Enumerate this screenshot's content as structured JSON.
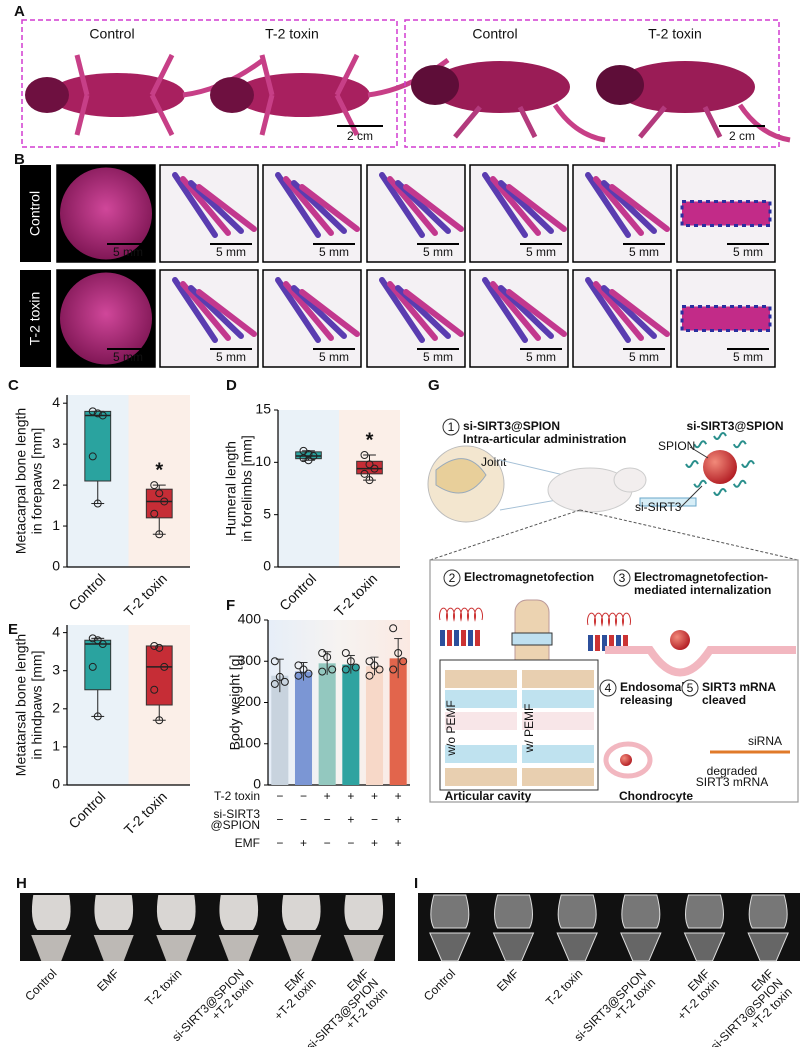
{
  "panel_labels": [
    "A",
    "B",
    "C",
    "D",
    "E",
    "F",
    "G",
    "H",
    "I"
  ],
  "panel_a": {
    "groups": [
      "Control",
      "T-2 toxin"
    ],
    "scale_bar": "2 cm"
  },
  "panel_b": {
    "rows": [
      "Control",
      "T-2 toxin"
    ],
    "scale_bar": "5 mm"
  },
  "chart_data": [
    {
      "type": "box",
      "y_label": [
        "Metacarpal bone length",
        "in forepaws [mm]"
      ],
      "categories": [
        "Control",
        "T-2 toxin"
      ],
      "boxes": [
        {
          "min": 1.55,
          "q1": 2.1,
          "median": 3.7,
          "q3": 3.8,
          "max": 3.8,
          "points": [
            3.8,
            3.75,
            3.7,
            2.7,
            1.55
          ]
        },
        {
          "min": 0.8,
          "q1": 1.2,
          "median": 1.6,
          "q3": 1.9,
          "max": 2.0,
          "points": [
            2.0,
            1.8,
            1.6,
            1.3,
            0.8
          ]
        }
      ],
      "significance": [
        null,
        "*"
      ],
      "colors": [
        "#2aa39f",
        "#c62d36"
      ],
      "backgrounds": [
        "#eaf2f8",
        "#fbefe8"
      ],
      "ylim": [
        0,
        4.2
      ],
      "yticks": [
        0,
        1,
        2,
        3,
        4
      ]
    },
    {
      "type": "box",
      "y_label": [
        "Humeral length",
        "in forelimbs [mm]"
      ],
      "categories": [
        "Control",
        "T-2 toxin"
      ],
      "boxes": [
        {
          "min": 10.2,
          "q1": 10.35,
          "median": 10.6,
          "q3": 11.0,
          "max": 11.1,
          "points": [
            11.1,
            10.8,
            10.6,
            10.4,
            10.2
          ]
        },
        {
          "min": 8.3,
          "q1": 8.9,
          "median": 9.4,
          "q3": 10.1,
          "max": 10.7,
          "points": [
            10.7,
            9.8,
            9.4,
            8.9,
            8.3
          ]
        }
      ],
      "significance": [
        null,
        "*"
      ],
      "colors": [
        "#2aa39f",
        "#c62d36"
      ],
      "backgrounds": [
        "#eaf2f8",
        "#fbefe8"
      ],
      "ylim": [
        0,
        15
      ],
      "yticks": [
        0,
        5,
        10,
        15
      ]
    },
    {
      "type": "box",
      "y_label": [
        "Metatarsal bone length",
        "in hindpaws [mm]"
      ],
      "categories": [
        "Control",
        "T-2 toxin"
      ],
      "boxes": [
        {
          "min": 1.8,
          "q1": 2.5,
          "median": 3.7,
          "q3": 3.8,
          "max": 3.85,
          "points": [
            3.85,
            3.8,
            3.7,
            3.1,
            1.8
          ]
        },
        {
          "min": 1.7,
          "q1": 2.1,
          "median": 3.1,
          "q3": 3.65,
          "max": 3.65,
          "points": [
            3.65,
            3.6,
            3.1,
            2.5,
            1.7
          ]
        }
      ],
      "significance": [
        null,
        null
      ],
      "colors": [
        "#2aa39f",
        "#c62d36"
      ],
      "backgrounds": [
        "#eaf2f8",
        "#fbefe8"
      ],
      "ylim": [
        0,
        4.2
      ],
      "yticks": [
        0,
        1,
        2,
        3,
        4
      ]
    },
    {
      "type": "bar",
      "y_label": "Body weight [g]",
      "values": [
        265,
        275,
        295,
        292,
        288,
        307
      ],
      "errors": [
        40,
        22,
        28,
        22,
        22,
        48
      ],
      "points": [
        [
          300,
          262,
          250,
          245
        ],
        [
          290,
          280,
          270,
          265
        ],
        [
          320,
          310,
          280,
          275
        ],
        [
          320,
          300,
          285,
          280
        ],
        [
          300,
          290,
          280,
          265
        ],
        [
          380,
          320,
          300,
          280
        ]
      ],
      "colors": [
        "#c8d3de",
        "#7b96d4",
        "#93c8bf",
        "#2fa3a0",
        "#f7d8c8",
        "#e2654c"
      ],
      "factors": [
        {
          "label": [
            "T-2 toxin"
          ],
          "signs": [
            "−",
            "−",
            "+",
            "+",
            "+",
            "+"
          ]
        },
        {
          "label": [
            "si-SIRT3",
            "@SPION"
          ],
          "signs": [
            "−",
            "−",
            "−",
            "+",
            "−",
            "+"
          ]
        },
        {
          "label": [
            "EMF"
          ],
          "signs": [
            "−",
            "+",
            "−",
            "−",
            "+",
            "+"
          ]
        }
      ],
      "ylim": [
        0,
        400
      ],
      "yticks": [
        0,
        100,
        200,
        300,
        400
      ]
    }
  ],
  "panel_g": {
    "step1_number": "1",
    "step1": [
      "si-SIRT3@SPION",
      "Intra-articular administration"
    ],
    "joint": "Joint",
    "particle_title": "si-SIRT3@SPION",
    "spion": "SPION",
    "sirna_label": "si-SIRT3",
    "step2_number": "2",
    "step2": "Electromagnetofection",
    "step3_number": "3",
    "step3": [
      "Electromagnetofection-",
      "mediated internalization"
    ],
    "step4_number": "4",
    "step4": [
      "Endosomal",
      "releasing"
    ],
    "step5_number": "5",
    "step5": [
      "SIRT3 mRNA",
      "cleaved"
    ],
    "sirna": "siRNA",
    "degraded": [
      "degraded",
      "SIRT3 mRNA"
    ],
    "without": "w/o PEMF",
    "with": "w/ PEMF",
    "articular_cavity": "Articular cavity",
    "chondrocyte": "Chondrocyte"
  },
  "panel_h": {
    "labels": [
      [
        "Control"
      ],
      [
        "EMF"
      ],
      [
        "T-2 toxin"
      ],
      [
        "si-SIRT3@SPION",
        "+T-2 toxin"
      ],
      [
        "EMF",
        "+T-2 toxin"
      ],
      [
        "EMF",
        "si-SIRT3@SPION",
        "+T-2 toxin"
      ]
    ]
  },
  "panel_i": {
    "labels": [
      [
        "Control"
      ],
      [
        "EMF"
      ],
      [
        "T-2 toxin"
      ],
      [
        "si-SIRT3@SPION",
        "+T-2 toxin"
      ],
      [
        "EMF",
        "+T-2 toxin"
      ],
      [
        "EMF",
        "si-SIRT3@SPION",
        "+T-2 toxin"
      ]
    ]
  }
}
